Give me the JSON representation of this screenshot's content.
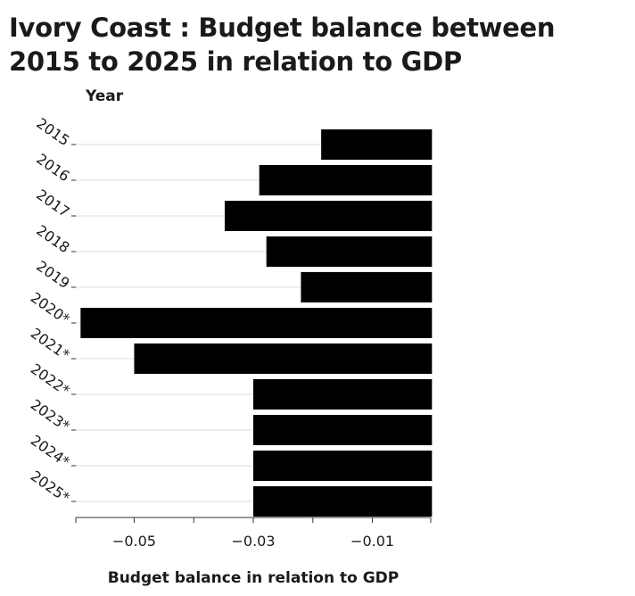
{
  "chart_data": {
    "type": "bar",
    "orientation": "horizontal",
    "title": "Ivory Coast : Budget balance between 2015 to 2025 in relation to GDP",
    "xlabel": "Budget balance in relation to GDP",
    "ylabel": "Year",
    "categories": [
      "2015",
      "2016",
      "2017",
      "2018",
      "2019",
      "2020*",
      "2021*",
      "2022*",
      "2023*",
      "2024*",
      "2025*"
    ],
    "values": [
      -0.0186,
      -0.029,
      -0.0348,
      -0.0278,
      -0.022,
      -0.059,
      -0.05,
      -0.03,
      -0.03,
      -0.03,
      -0.03
    ],
    "xlim": [
      -0.0598,
      -0.0002
    ],
    "xticks": [
      -0.05,
      -0.03,
      -0.01
    ],
    "xtick_labels": [
      "−0.05",
      "−0.03",
      "−0.01"
    ],
    "bar_color": "#000000",
    "grid": "horizontal",
    "legend": "none"
  }
}
